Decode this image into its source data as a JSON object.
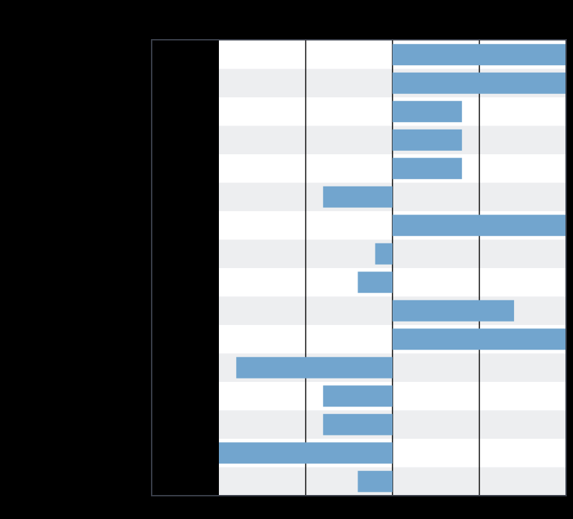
{
  "chart_data": {
    "type": "bar",
    "orientation": "horizontal",
    "title": "",
    "xlabel": "",
    "ylabel": "",
    "categories": [
      "",
      "",
      "",
      "",
      "",
      "",
      "",
      "",
      "",
      "",
      "",
      "",
      "",
      "",
      "",
      ""
    ],
    "values": [
      10,
      10,
      4,
      4,
      4,
      -4,
      10,
      -1,
      -2,
      7,
      10,
      -9,
      -4,
      -4,
      -10,
      -2
    ],
    "xlim": [
      -10,
      10
    ],
    "grid": true,
    "legend": "none",
    "colors": {
      "background": "#000000",
      "bar": "#72a5ce",
      "row_light": "#ffffff",
      "row_shaded": "#edeef0",
      "axis": "#3a3f4a",
      "grid": "#000000"
    }
  }
}
